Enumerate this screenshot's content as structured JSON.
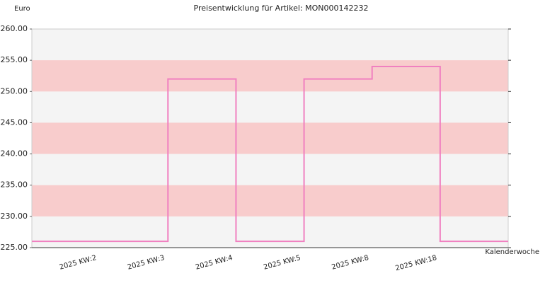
{
  "chart_data": {
    "type": "step-line",
    "title": "Preisentwicklung für Artikel: MON000142232",
    "y_label": "Euro",
    "x_label": "Kalenderwoche",
    "categories": [
      "2025 KW:2",
      "2025 KW:3",
      "2025 KW:4",
      "2025 KW:5",
      "2025 KW:8",
      "2025 KW:18"
    ],
    "series": [
      {
        "name": "Preis",
        "color": "#f080c0",
        "values": [
          226,
          252,
          226,
          252,
          254,
          226
        ]
      }
    ],
    "ylim": [
      225,
      260
    ],
    "yticks": [
      {
        "value": 225,
        "label": "225.00"
      },
      {
        "value": 230,
        "label": "230.00"
      },
      {
        "value": 235,
        "label": "235.00"
      },
      {
        "value": 240,
        "label": "240.00"
      },
      {
        "value": 245,
        "label": "245.00"
      },
      {
        "value": 250,
        "label": "250.00"
      },
      {
        "value": 255,
        "label": "255.00"
      },
      {
        "value": 260,
        "label": "260.00"
      }
    ],
    "bands": [
      {
        "from": 230,
        "to": 235
      },
      {
        "from": 240,
        "to": 245
      },
      {
        "from": 250,
        "to": 255
      }
    ],
    "band_color": "#f8cccc",
    "background_color": "#f4f4f4"
  }
}
